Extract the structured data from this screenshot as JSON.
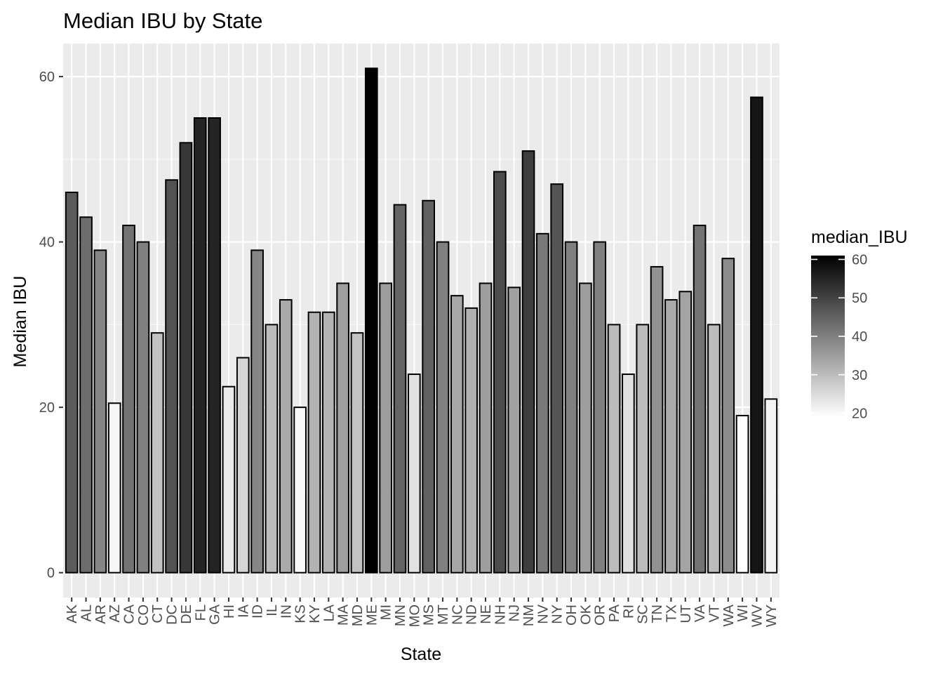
{
  "chart_data": {
    "type": "bar",
    "title": "Median IBU by State",
    "xlabel": "State",
    "ylabel": "Median IBU",
    "ylim": [
      -3,
      64
    ],
    "yticks": [
      0,
      20,
      40,
      60
    ],
    "grid": true,
    "legend": {
      "title": "median_IBU",
      "placement": "right",
      "range": [
        19,
        61
      ],
      "ticks": [
        20,
        30,
        40,
        50,
        60
      ],
      "color_low": "#ffffff",
      "color_high": "#000000"
    },
    "categories": [
      "AK",
      "AL",
      "AR",
      "AZ",
      "CA",
      "CO",
      "CT",
      "DC",
      "DE",
      "FL",
      "GA",
      "HI",
      "IA",
      "ID",
      "IL",
      "IN",
      "KS",
      "KY",
      "LA",
      "MA",
      "MD",
      "ME",
      "MI",
      "MN",
      "MO",
      "MS",
      "MT",
      "NC",
      "ND",
      "NE",
      "NH",
      "NJ",
      "NM",
      "NV",
      "NY",
      "OH",
      "OK",
      "OR",
      "PA",
      "RI",
      "SC",
      "TN",
      "TX",
      "UT",
      "VA",
      "VT",
      "WA",
      "WI",
      "WV",
      "WY"
    ],
    "values": [
      46,
      43,
      39,
      20.5,
      42,
      40,
      29,
      47.5,
      52,
      55,
      55,
      22.5,
      26,
      39,
      30,
      33,
      20,
      31.5,
      31.5,
      35,
      29,
      61,
      35,
      44.5,
      24,
      45,
      40,
      33.5,
      32,
      35,
      48.5,
      34.5,
      51,
      41,
      47,
      40,
      35,
      40,
      30,
      24,
      30,
      37,
      33,
      34,
      42,
      30,
      38,
      19,
      57.5,
      21
    ]
  },
  "colors": {
    "panel_bg": "#ebebeb",
    "grid_major": "#ffffff",
    "grid_minor": "#f5f5f5",
    "bar_outline": "#000000",
    "tick_color": "#333333"
  }
}
